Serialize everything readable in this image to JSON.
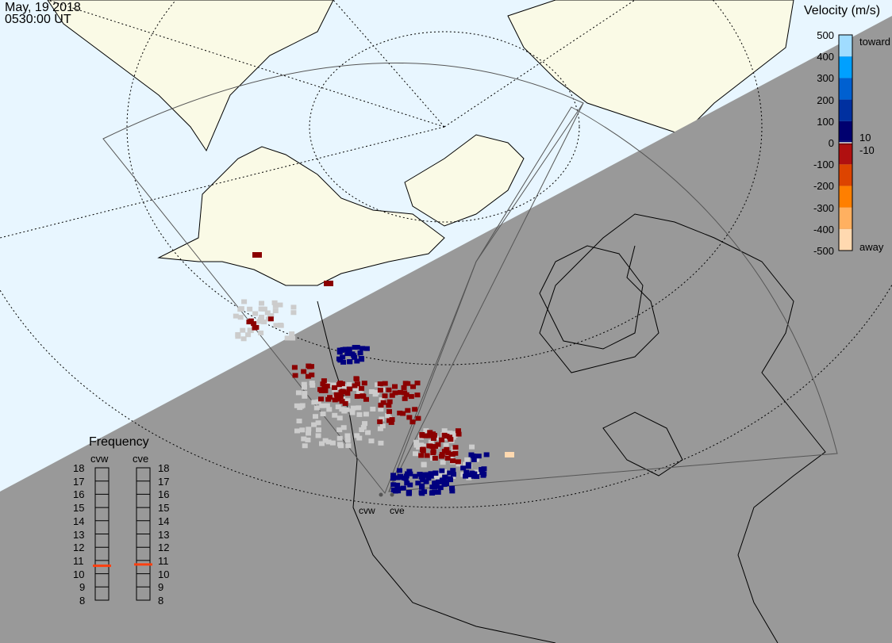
{
  "header": {
    "date": "May, 19 2018",
    "time": "0530:00 UT"
  },
  "colorbar": {
    "title": "Velocity (m/s)",
    "ticks": [
      "500",
      "400",
      "300",
      "200",
      "100",
      "0",
      "-100",
      "-200",
      "-300",
      "-400",
      "-500"
    ],
    "toward_label": "toward",
    "away_label": "away",
    "pos_threshold": "10",
    "neg_threshold": "-10",
    "range": [
      -500,
      500
    ],
    "colors": [
      "#ffd9b0",
      "#ffb060",
      "#ff7f00",
      "#dd4400",
      "#b01010",
      "#7f0000",
      "#d0d0d0",
      "#00006f",
      "#0030a0",
      "#0060d0",
      "#00a0ff",
      "#a0dcff"
    ]
  },
  "frequency": {
    "title": "Frequency",
    "unit_range": [
      8,
      18
    ],
    "ticks": [
      "18",
      "17",
      "16",
      "15",
      "14",
      "13",
      "12",
      "11",
      "10",
      "9",
      "8"
    ],
    "radars": [
      {
        "name": "cvw",
        "value_mhz": 10.6
      },
      {
        "name": "cve",
        "value_mhz": 10.7
      }
    ],
    "marker_color": "#ff4010"
  },
  "map": {
    "radar_labels": [
      "cvw",
      "cve"
    ],
    "night_color": "#999999",
    "day_ocean_color": "#e8f6ff",
    "land_color": "#fafae6"
  }
}
